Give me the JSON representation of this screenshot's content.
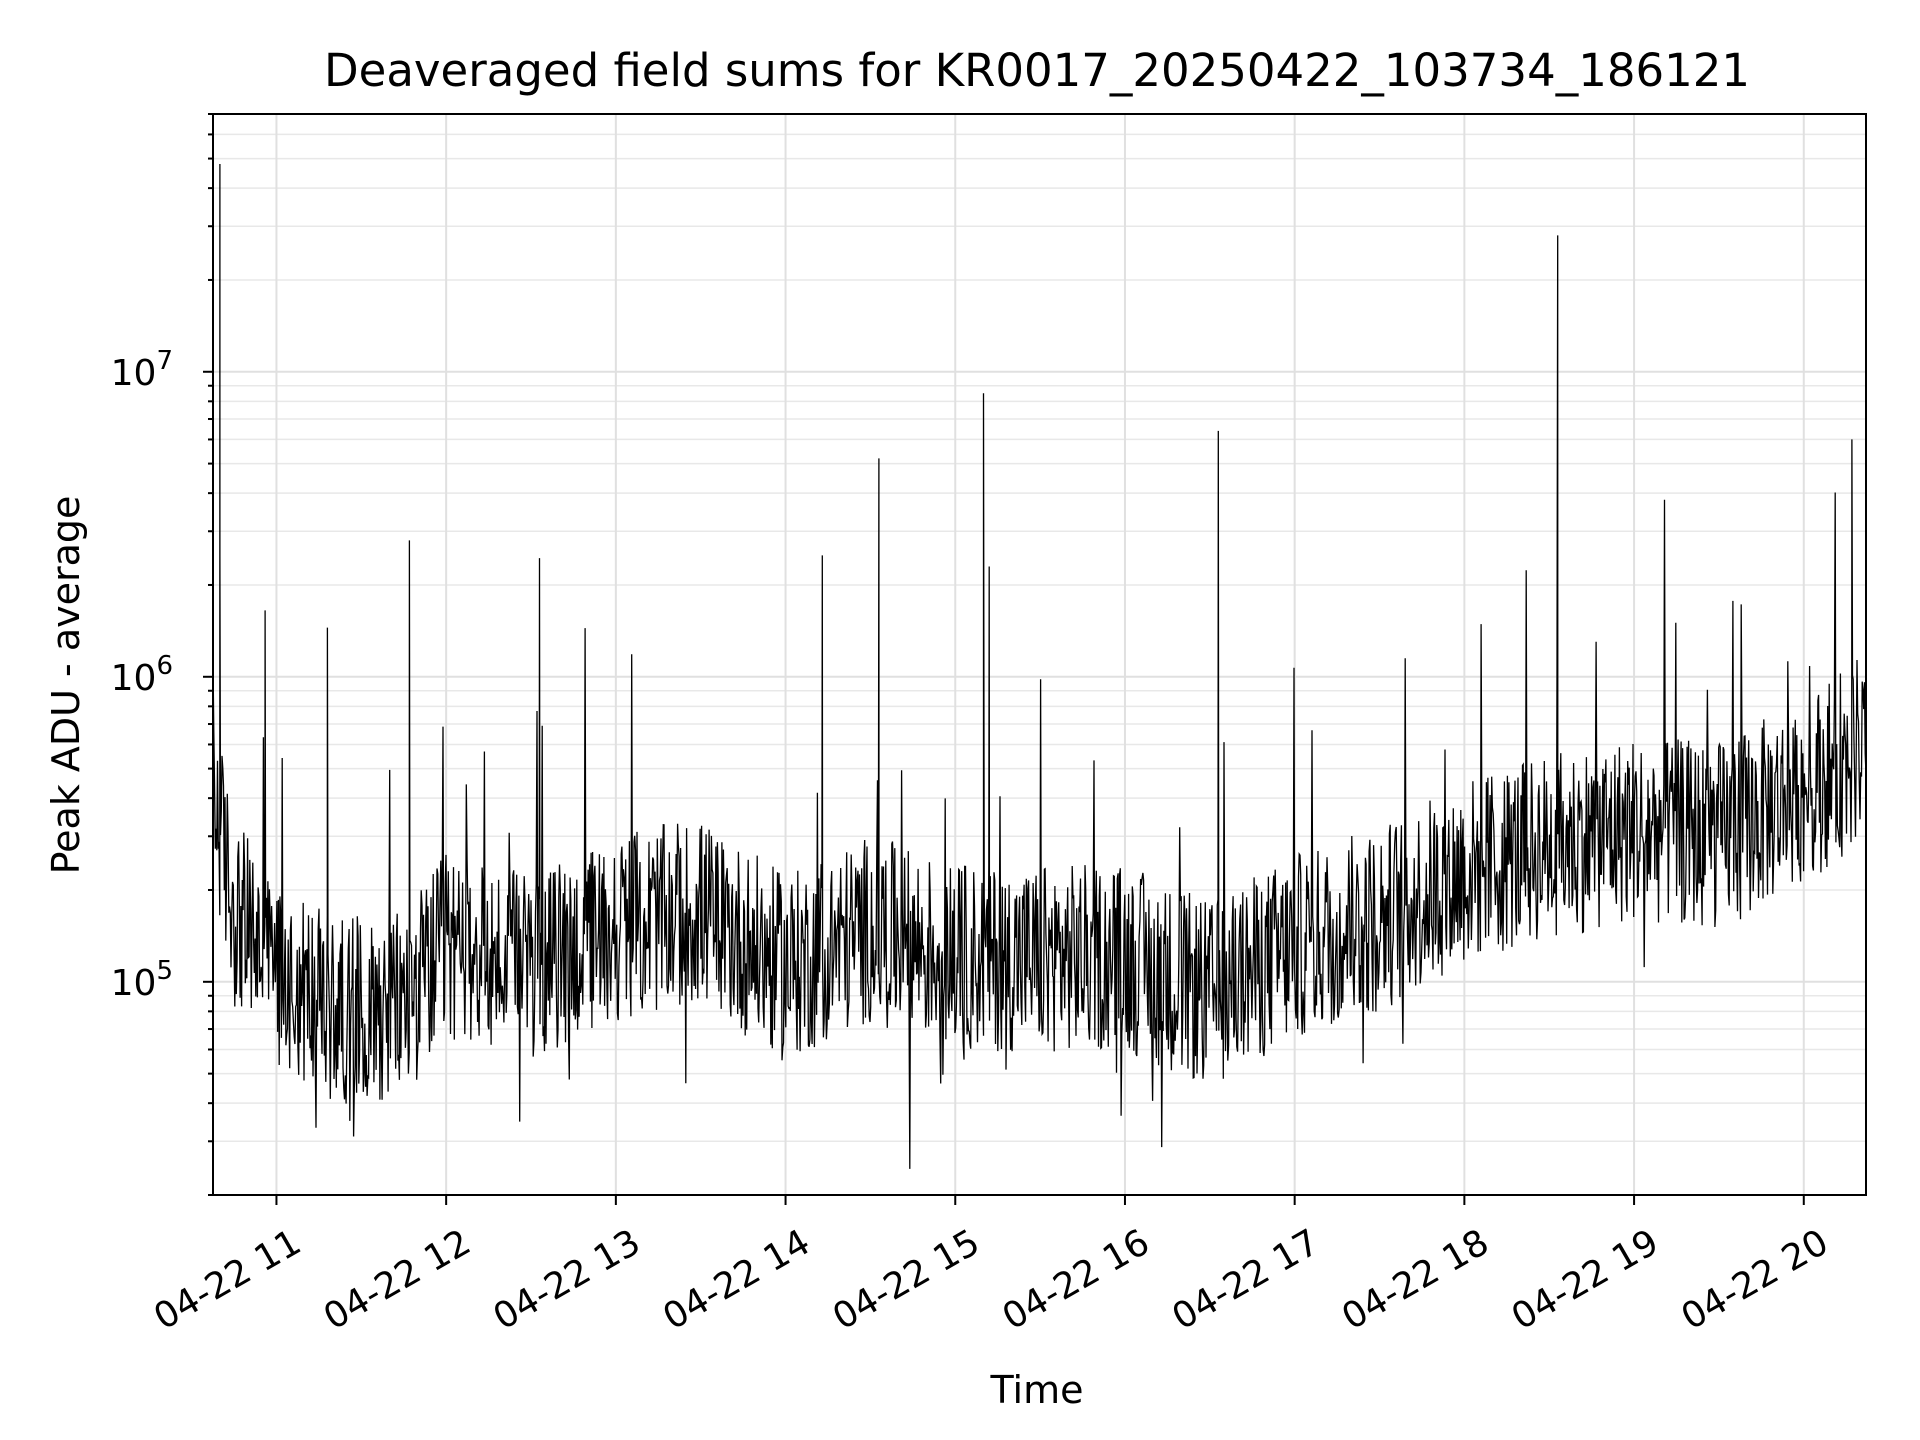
{
  "chart_data": {
    "type": "line",
    "title": "Deaveraged field sums for KR0017_20250422_103734_186121",
    "xlabel": "Time",
    "ylabel": "Peak ADU - average",
    "yscale": "log",
    "ylim": [
      20000,
      70000000
    ],
    "xlim": [
      "2025-04-22 10:37:34",
      "2025-04-22 20:22:00"
    ],
    "grid": "major and minor",
    "x_tick_labels": [
      "04-22 11",
      "04-22 12",
      "04-22 13",
      "04-22 14",
      "04-22 15",
      "04-22 16",
      "04-22 17",
      "04-22 18",
      "04-22 19",
      "04-22 20"
    ],
    "x_ticks": [
      "2025-04-22 11:00",
      "2025-04-22 12:00",
      "2025-04-22 13:00",
      "2025-04-22 14:00",
      "2025-04-22 15:00",
      "2025-04-22 16:00",
      "2025-04-22 17:00",
      "2025-04-22 18:00",
      "2025-04-22 19:00",
      "2025-04-22 20:00"
    ],
    "y_ticks": [
      100000,
      1000000,
      10000000
    ],
    "y_tick_labels": [
      {
        "base": "10",
        "exp": "5"
      },
      {
        "base": "10",
        "exp": "6"
      },
      {
        "base": "10",
        "exp": "7"
      }
    ],
    "line_color": "#000000",
    "baseline": [
      {
        "x": "2025-04-22 10:38",
        "y": 400000
      },
      {
        "x": "2025-04-22 10:45",
        "y": 170000
      },
      {
        "x": "2025-04-22 11:00",
        "y": 110000
      },
      {
        "x": "2025-04-22 11:20",
        "y": 80000
      },
      {
        "x": "2025-04-22 11:45",
        "y": 85000
      },
      {
        "x": "2025-04-22 12:00",
        "y": 130000
      },
      {
        "x": "2025-04-22 12:30",
        "y": 110000
      },
      {
        "x": "2025-04-22 13:00",
        "y": 150000
      },
      {
        "x": "2025-04-22 13:30",
        "y": 170000
      },
      {
        "x": "2025-04-22 14:00",
        "y": 110000
      },
      {
        "x": "2025-04-22 14:30",
        "y": 150000
      },
      {
        "x": "2025-04-22 15:00",
        "y": 120000
      },
      {
        "x": "2025-04-22 15:30",
        "y": 120000
      },
      {
        "x": "2025-04-22 16:00",
        "y": 120000
      },
      {
        "x": "2025-04-22 16:30",
        "y": 90000
      },
      {
        "x": "2025-04-22 17:00",
        "y": 130000
      },
      {
        "x": "2025-04-22 17:30",
        "y": 160000
      },
      {
        "x": "2025-04-22 18:00",
        "y": 230000
      },
      {
        "x": "2025-04-22 18:30",
        "y": 280000
      },
      {
        "x": "2025-04-22 19:00",
        "y": 320000
      },
      {
        "x": "2025-04-22 19:30",
        "y": 300000
      },
      {
        "x": "2025-04-22 20:00",
        "y": 420000
      },
      {
        "x": "2025-04-22 20:22",
        "y": 600000
      }
    ],
    "spikes": [
      {
        "x": "2025-04-22 10:40",
        "y": 48000000
      },
      {
        "x": "2025-04-22 10:40",
        "y": 2500000
      },
      {
        "x": "2025-04-22 10:56",
        "y": 1650000
      },
      {
        "x": "2025-04-22 11:18",
        "y": 1450000
      },
      {
        "x": "2025-04-22 11:47",
        "y": 2800000
      },
      {
        "x": "2025-04-22 12:33",
        "y": 2450000
      },
      {
        "x": "2025-04-22 14:13",
        "y": 2500000
      },
      {
        "x": "2025-04-22 14:33",
        "y": 5200000
      },
      {
        "x": "2025-04-22 15:10",
        "y": 8500000
      },
      {
        "x": "2025-04-22 15:12",
        "y": 2300000
      },
      {
        "x": "2025-04-22 16:33",
        "y": 6400000
      },
      {
        "x": "2025-04-22 18:33",
        "y": 28000000
      },
      {
        "x": "2025-04-22 20:17",
        "y": 6000000
      }
    ]
  }
}
